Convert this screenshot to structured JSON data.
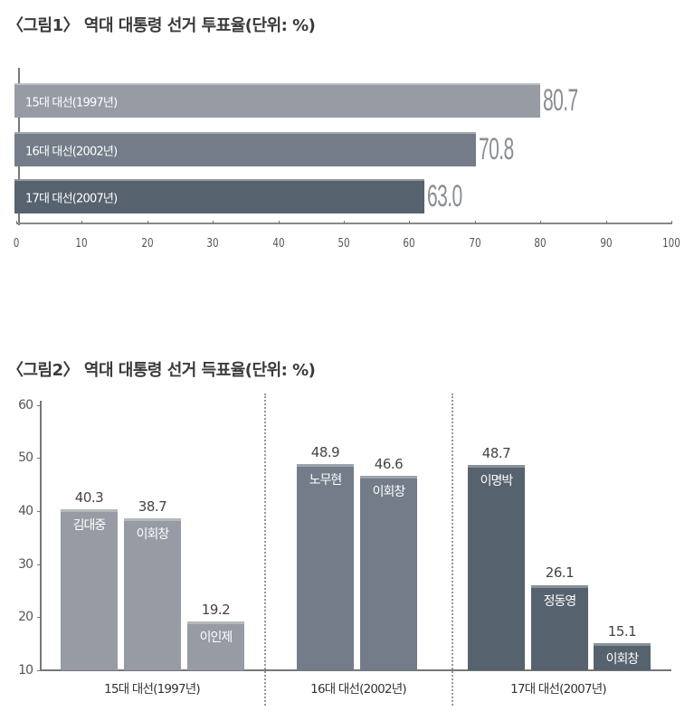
{
  "chart_data": [
    {
      "type": "bar",
      "orientation": "horizontal",
      "title": "〈그림1〉 역대 대통령 선거 투표율(단위: %)",
      "categories": [
        "15대 대선(1997년)",
        "16대 대선(2002년)",
        "17대 대선(2007년)"
      ],
      "values": [
        80.7,
        70.8,
        63.0
      ],
      "value_labels": [
        "80.7",
        "70.8",
        "63.0"
      ],
      "xlabel": "",
      "ylabel": "",
      "xlim": [
        0,
        100
      ],
      "xticks": [
        "0",
        "10",
        "20",
        "30",
        "40",
        "50",
        "60",
        "70",
        "80",
        "90",
        "100"
      ],
      "colors": [
        "#969ba4",
        "#737c88",
        "#56626e"
      ],
      "grid": false,
      "legend": "none"
    },
    {
      "type": "bar",
      "orientation": "vertical",
      "title": "〈그림2〉 역대 대통령 선거 득표율(단위: %)",
      "groups": [
        {
          "label": "15대 대선(1997년)",
          "color": "#969ba4",
          "bars": [
            {
              "name": "김대중",
              "value": 40.3,
              "label": "40.3"
            },
            {
              "name": "이회창",
              "value": 38.7,
              "label": "38.7"
            },
            {
              "name": "이인제",
              "value": 19.2,
              "label": "19.2"
            }
          ]
        },
        {
          "label": "16대 대선(2002년)",
          "color": "#737c88",
          "bars": [
            {
              "name": "노무현",
              "value": 48.9,
              "label": "48.9"
            },
            {
              "name": "이회창",
              "value": 46.6,
              "label": "46.6"
            }
          ]
        },
        {
          "label": "17대 대선(2007년)",
          "color": "#56626e",
          "bars": [
            {
              "name": "이명박",
              "value": 48.7,
              "label": "48.7"
            },
            {
              "name": "정동영",
              "value": 26.1,
              "label": "26.1"
            },
            {
              "name": "이회창",
              "value": 15.1,
              "label": "15.1"
            }
          ]
        }
      ],
      "ylim": [
        10,
        60
      ],
      "yticks": [
        "60",
        "50",
        "40",
        "30",
        "20",
        "10"
      ],
      "grid": false,
      "legend": "none"
    }
  ]
}
